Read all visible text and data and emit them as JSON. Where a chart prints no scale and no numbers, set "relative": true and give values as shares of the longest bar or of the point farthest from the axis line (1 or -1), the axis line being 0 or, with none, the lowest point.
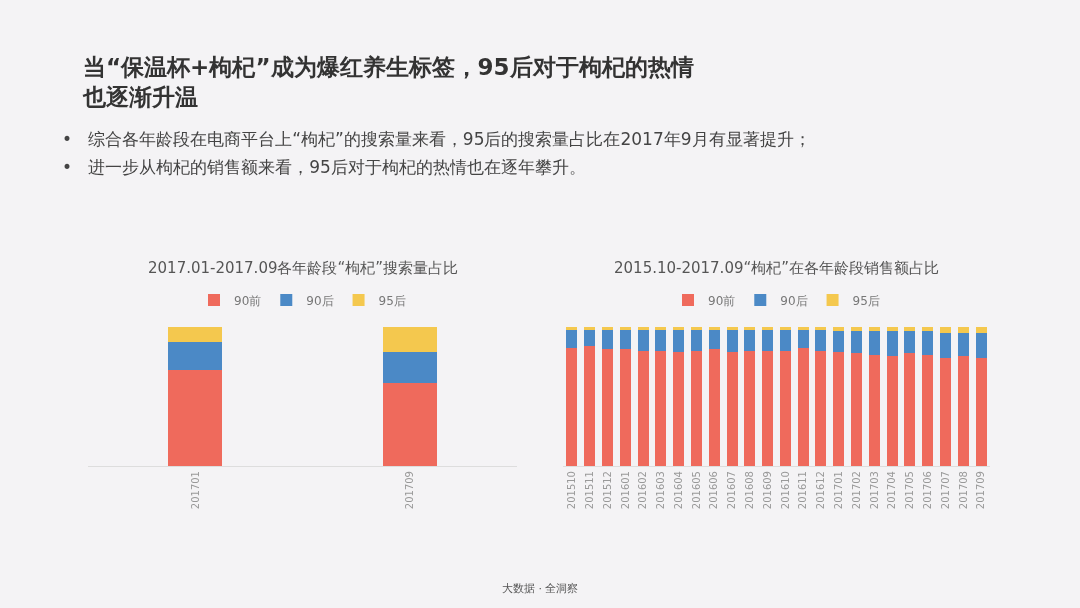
{
  "chart_data": [
    {
      "type": "other",
      "title": "当“保温杯+枸杞”成为爆红养生标签，95后对于枸杞的热情也逐渐升温",
      "annotations": [
        "•   综合各年龄段在电商平台上“枸杞”的搜索量来看，95后的搜索量占比在2017年9月有显著提升；",
        "•   进一步从枸杞的销售额来看，95后对于枸杞的热情也在逐年攀升。",
        "大数据 · 全洞察"
      ]
    },
    {
      "type": "bar",
      "title": "2017.01-2017.09各年龄段“枸杞”搜索量占比",
      "categories": [
        "201701",
        "201709"
      ],
      "relative": true,
      "stacked": true,
      "legend": "top",
      "tick_labels": "x",
      "series": [
        {
          "name": "90前",
          "color": "#ef6a5c",
          "values": [
            0.69,
            0.6
          ]
        },
        {
          "name": "90后",
          "color": "#4b89c6",
          "values": [
            0.2,
            0.22
          ]
        },
        {
          "name": "95后",
          "color": "#f4c84e",
          "values": [
            0.11,
            0.18
          ]
        }
      ]
    },
    {
      "type": "bar",
      "title": "2015.10-2017.09“枸杞”在各年龄段销售额占比",
      "categories": [
        "201510",
        "201511",
        "201512",
        "201601",
        "201602",
        "201603",
        "201604",
        "201605",
        "201606",
        "201607",
        "201608",
        "201609",
        "201610",
        "201611",
        "201612",
        "201701",
        "201702",
        "201703",
        "201704",
        "201705",
        "201706",
        "201707",
        "201708",
        "201709"
      ],
      "relative": true,
      "stacked": true,
      "legend": "top",
      "tick_labels": "x",
      "series": [
        {
          "name": "90前",
          "color": "#ef6a5c",
          "values": [
            0.85,
            0.86,
            0.84,
            0.84,
            0.83,
            0.83,
            0.82,
            0.83,
            0.84,
            0.82,
            0.83,
            0.83,
            0.83,
            0.85,
            0.83,
            0.82,
            0.81,
            0.8,
            0.79,
            0.81,
            0.8,
            0.78,
            0.79,
            0.78
          ]
        },
        {
          "name": "90后",
          "color": "#4b89c6",
          "values": [
            0.13,
            0.12,
            0.14,
            0.14,
            0.15,
            0.15,
            0.16,
            0.15,
            0.14,
            0.16,
            0.15,
            0.15,
            0.15,
            0.13,
            0.15,
            0.15,
            0.16,
            0.17,
            0.18,
            0.16,
            0.17,
            0.18,
            0.17,
            0.18
          ]
        },
        {
          "name": "95后",
          "color": "#f4c84e",
          "values": [
            0.02,
            0.02,
            0.02,
            0.02,
            0.02,
            0.02,
            0.02,
            0.02,
            0.02,
            0.02,
            0.02,
            0.02,
            0.02,
            0.02,
            0.02,
            0.03,
            0.03,
            0.03,
            0.03,
            0.03,
            0.03,
            0.04,
            0.04,
            0.04
          ]
        }
      ]
    }
  ]
}
